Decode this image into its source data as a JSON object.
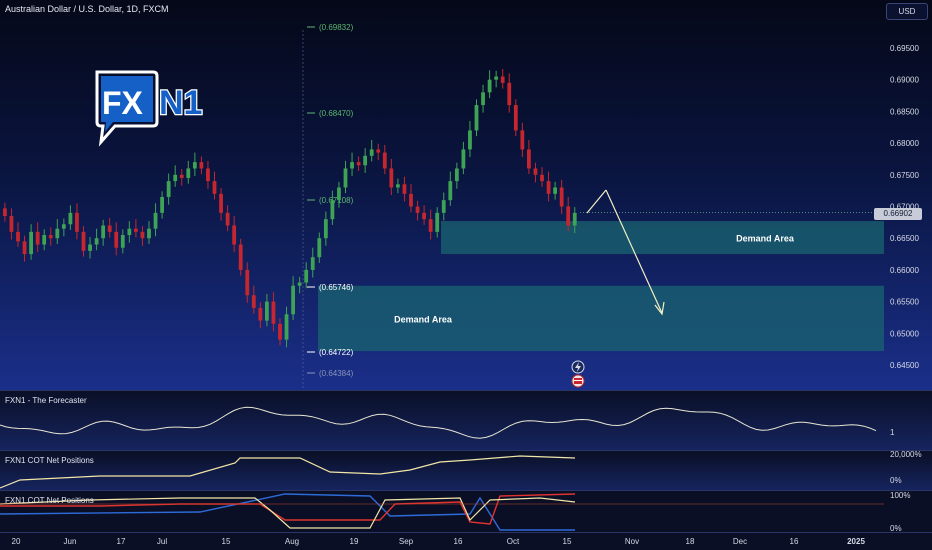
{
  "header": {
    "title": "Australian Dollar / U.S. Dollar, 1D, FXCM",
    "currency_button": "USD"
  },
  "logo": {
    "text_fx": "FX",
    "text_n1": "N1"
  },
  "current_price": "0.66902",
  "main_axis_ticks": [
    "0.69500",
    "0.69000",
    "0.68500",
    "0.68000",
    "0.67500",
    "0.67000",
    "0.66500",
    "0.66000",
    "0.65500",
    "0.65000",
    "0.64500"
  ],
  "fib_levels": [
    "(0.69832)",
    "(0.68470)",
    "(0.67108)",
    "(0.65746)",
    "(0.64722)",
    "(0.64384)"
  ],
  "zones": [
    {
      "label": "Demand Area",
      "from": 0.6625,
      "to": 0.6677
    },
    {
      "label": "Demand Area",
      "from": 0.6472,
      "to": 0.6575
    }
  ],
  "panes": {
    "forecaster": {
      "label": "FXN1 - The Forecaster",
      "tick": "1"
    },
    "cot1": {
      "label": "FXN1 COT Net Positions",
      "ticks": [
        "20,000%",
        "0%"
      ]
    },
    "cot2": {
      "label": "FXN1 COT Net Positions",
      "ticks": [
        "100%",
        "0%"
      ]
    }
  },
  "time_axis": [
    "20",
    "Jun",
    "17",
    "Jul",
    "15",
    "Aug",
    "19",
    "Sep",
    "16",
    "Oct",
    "15",
    "Nov",
    "18",
    "Dec",
    "16",
    "2025"
  ],
  "colors": {
    "up": "#3ea354",
    "down": "#c6262e",
    "zone": "#1a6470",
    "arrow": "#f2f0c4"
  },
  "chart_data": {
    "type": "candlestick",
    "title": "Australian Dollar / U.S. Dollar, 1D, FXCM",
    "ylim": [
      0.6415,
      0.699
    ],
    "close_series_approx": [
      0.6685,
      0.666,
      0.6645,
      0.6625,
      0.666,
      0.664,
      0.6655,
      0.665,
      0.6665,
      0.6672,
      0.669,
      0.666,
      0.663,
      0.664,
      0.665,
      0.667,
      0.666,
      0.6635,
      0.6655,
      0.6665,
      0.666,
      0.665,
      0.6665,
      0.669,
      0.6715,
      0.674,
      0.675,
      0.6745,
      0.676,
      0.677,
      0.676,
      0.674,
      0.672,
      0.669,
      0.667,
      0.664,
      0.66,
      0.656,
      0.654,
      0.652,
      0.655,
      0.6515,
      0.649,
      0.653,
      0.6575,
      0.658,
      0.66,
      0.662,
      0.665,
      0.668,
      0.671,
      0.673,
      0.676,
      0.677,
      0.6765,
      0.678,
      0.679,
      0.6785,
      0.676,
      0.673,
      0.6735,
      0.672,
      0.67,
      0.669,
      0.668,
      0.666,
      0.669,
      0.671,
      0.674,
      0.676,
      0.679,
      0.682,
      0.686,
      0.688,
      0.69,
      0.6905,
      0.6895,
      0.686,
      0.682,
      0.679,
      0.676,
      0.675,
      0.674,
      0.672,
      0.673,
      0.67,
      0.667,
      0.669
    ]
  }
}
